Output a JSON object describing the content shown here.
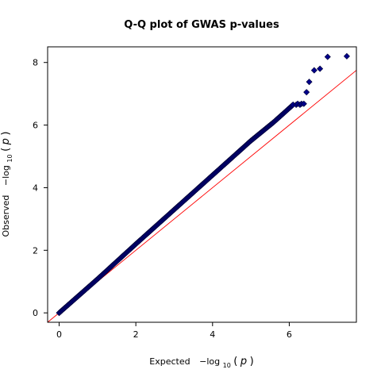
{
  "chart_data": {
    "type": "scatter",
    "title": "Q-Q plot of GWAS p-values",
    "xlabel": {
      "prefix": "Expected",
      "func": "−log",
      "subscript": "10",
      "open": "(",
      "var": "p",
      "close": ")"
    },
    "ylabel": {
      "prefix": "Observed",
      "func": "−log",
      "subscript": "10",
      "open": "(",
      "var": "p",
      "close": ")"
    },
    "xlim": [
      -0.3,
      7.75
    ],
    "ylim": [
      -0.3,
      8.5
    ],
    "x_ticks": [
      0,
      2,
      4,
      6
    ],
    "y_ticks": [
      0,
      2,
      4,
      6,
      8
    ],
    "grid": false,
    "legend": "none",
    "colors": {
      "points_fill": "#00008b",
      "points_edge": "#000033",
      "reference_line": "#ff0000"
    },
    "reference_line": {
      "slope": 1,
      "intercept": 0
    },
    "trend": {
      "x": [
        0,
        1,
        2,
        3,
        4,
        5,
        5.6,
        6.1
      ],
      "y": [
        0,
        1.08,
        2.2,
        3.3,
        4.4,
        5.5,
        6.1,
        6.65
      ]
    },
    "tail_points": {
      "x": [
        6.18,
        6.22,
        6.28,
        6.32,
        6.38,
        6.45,
        6.52,
        6.65,
        6.8,
        7.0,
        7.5
      ],
      "y": [
        6.65,
        6.68,
        6.65,
        6.68,
        6.68,
        7.05,
        7.38,
        7.75,
        7.8,
        8.18,
        8.2
      ]
    }
  }
}
